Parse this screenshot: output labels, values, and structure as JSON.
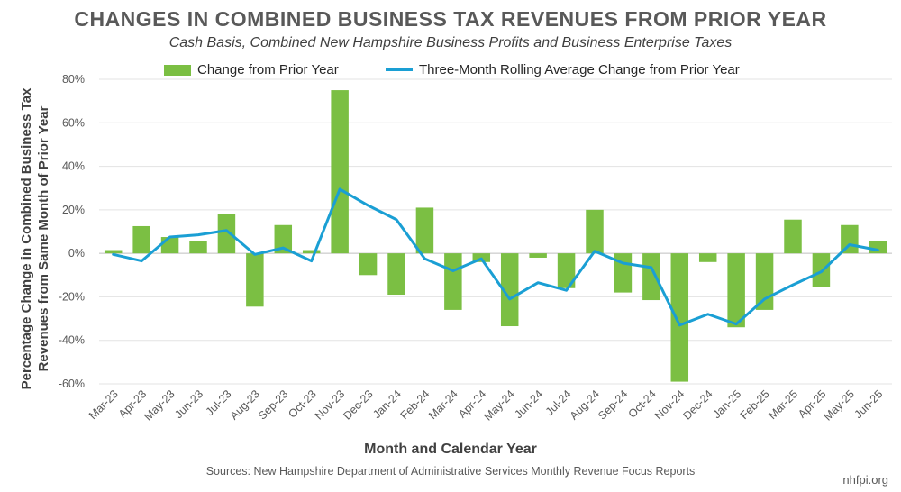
{
  "chart_data": {
    "type": "bar",
    "title": "CHANGES IN COMBINED BUSINESS TAX REVENUES FROM PRIOR YEAR",
    "subtitle": "Cash Basis, Combined New Hampshire Business Profits and Business Enterprise Taxes",
    "xlabel": "Month and Calendar Year",
    "ylabel_line1": "Percentage Change in Combined Business Tax",
    "ylabel_line2": "Revenues from Same Month of Prior Year",
    "ylim": [
      -60,
      80
    ],
    "yticks": [
      -60,
      -40,
      -20,
      0,
      20,
      40,
      60,
      80
    ],
    "ytick_labels": [
      "-60%",
      "-40%",
      "-20%",
      "0%",
      "20%",
      "40%",
      "60%",
      "80%"
    ],
    "legend_position": "top-center",
    "categories": [
      "Mar-23",
      "Apr-23",
      "May-23",
      "Jun-23",
      "Jul-23",
      "Aug-23",
      "Sep-23",
      "Oct-23",
      "Nov-23",
      "Dec-23",
      "Jan-24",
      "Feb-24",
      "Mar-24",
      "Apr-24",
      "May-24",
      "Jun-24",
      "Jul-24",
      "Aug-24",
      "Sep-24",
      "Oct-24",
      "Nov-24",
      "Dec-24",
      "Jan-25",
      "Feb-25",
      "Mar-25",
      "Apr-25",
      "May-25",
      "Jun-25"
    ],
    "series": [
      {
        "name": "Change from Prior Year",
        "kind": "bar",
        "color": "#7bbf43",
        "values": [
          1.5,
          12.5,
          7.5,
          5.5,
          18,
          -24.5,
          13,
          1.5,
          75,
          -10,
          -19,
          21,
          -26,
          -4,
          -33.5,
          -2,
          -16,
          20,
          -18,
          -21.5,
          -59,
          -4,
          -34,
          -26,
          15.5,
          -15.5,
          13,
          5.5
        ]
      },
      {
        "name": "Three-Month Rolling Average Change from Prior Year",
        "kind": "line",
        "color": "#1a9fd4",
        "values": [
          -0.5,
          -3.5,
          7.5,
          8.5,
          10.5,
          -0.5,
          2.5,
          -3.5,
          29.5,
          22,
          15.5,
          -2.5,
          -8,
          -2.5,
          -21,
          -13.5,
          -17,
          1,
          -4.5,
          -6.5,
          -33,
          -28,
          -32.5,
          -21,
          -14.5,
          -8.5,
          4,
          1.5
        ]
      }
    ]
  },
  "source": "Sources: New Hampshire Department of Administrative Services Monthly Revenue Focus Reports",
  "site": "nhfpi.org"
}
